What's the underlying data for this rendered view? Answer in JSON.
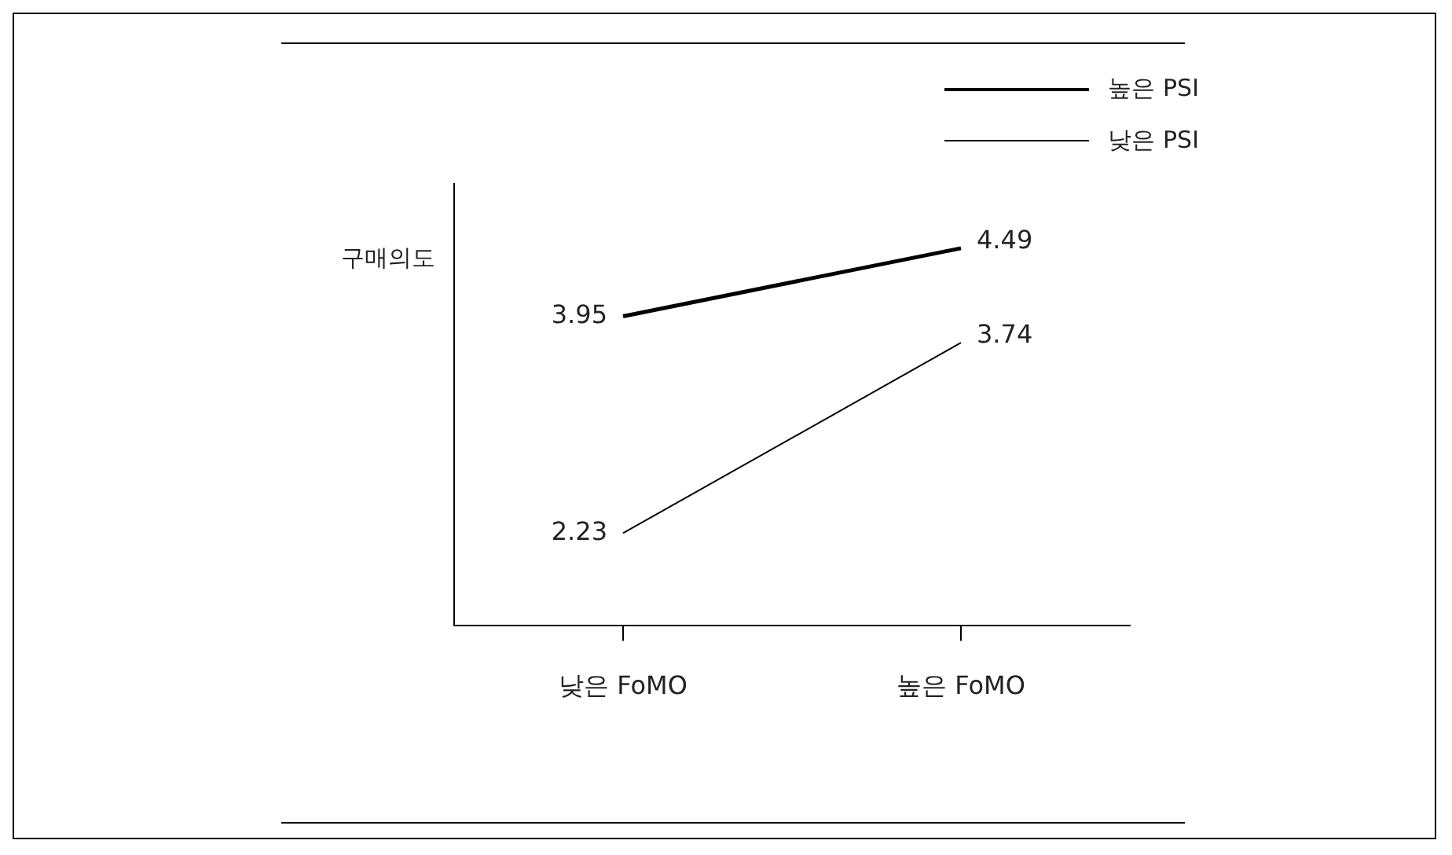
{
  "chart_data": {
    "type": "line",
    "ylabel": "구매의도",
    "categories": [
      "낮은 FoMO",
      "높은 FoMO"
    ],
    "series": [
      {
        "name": "높은 PSI",
        "color": "#000000",
        "values": [
          3.95,
          4.49
        ]
      },
      {
        "name": "낮은 PSI",
        "color": "#000000",
        "values": [
          2.23,
          3.74
        ]
      }
    ],
    "data_labels": true,
    "legend": "top right",
    "grid": false,
    "marker": "none",
    "line_style": "solid"
  }
}
